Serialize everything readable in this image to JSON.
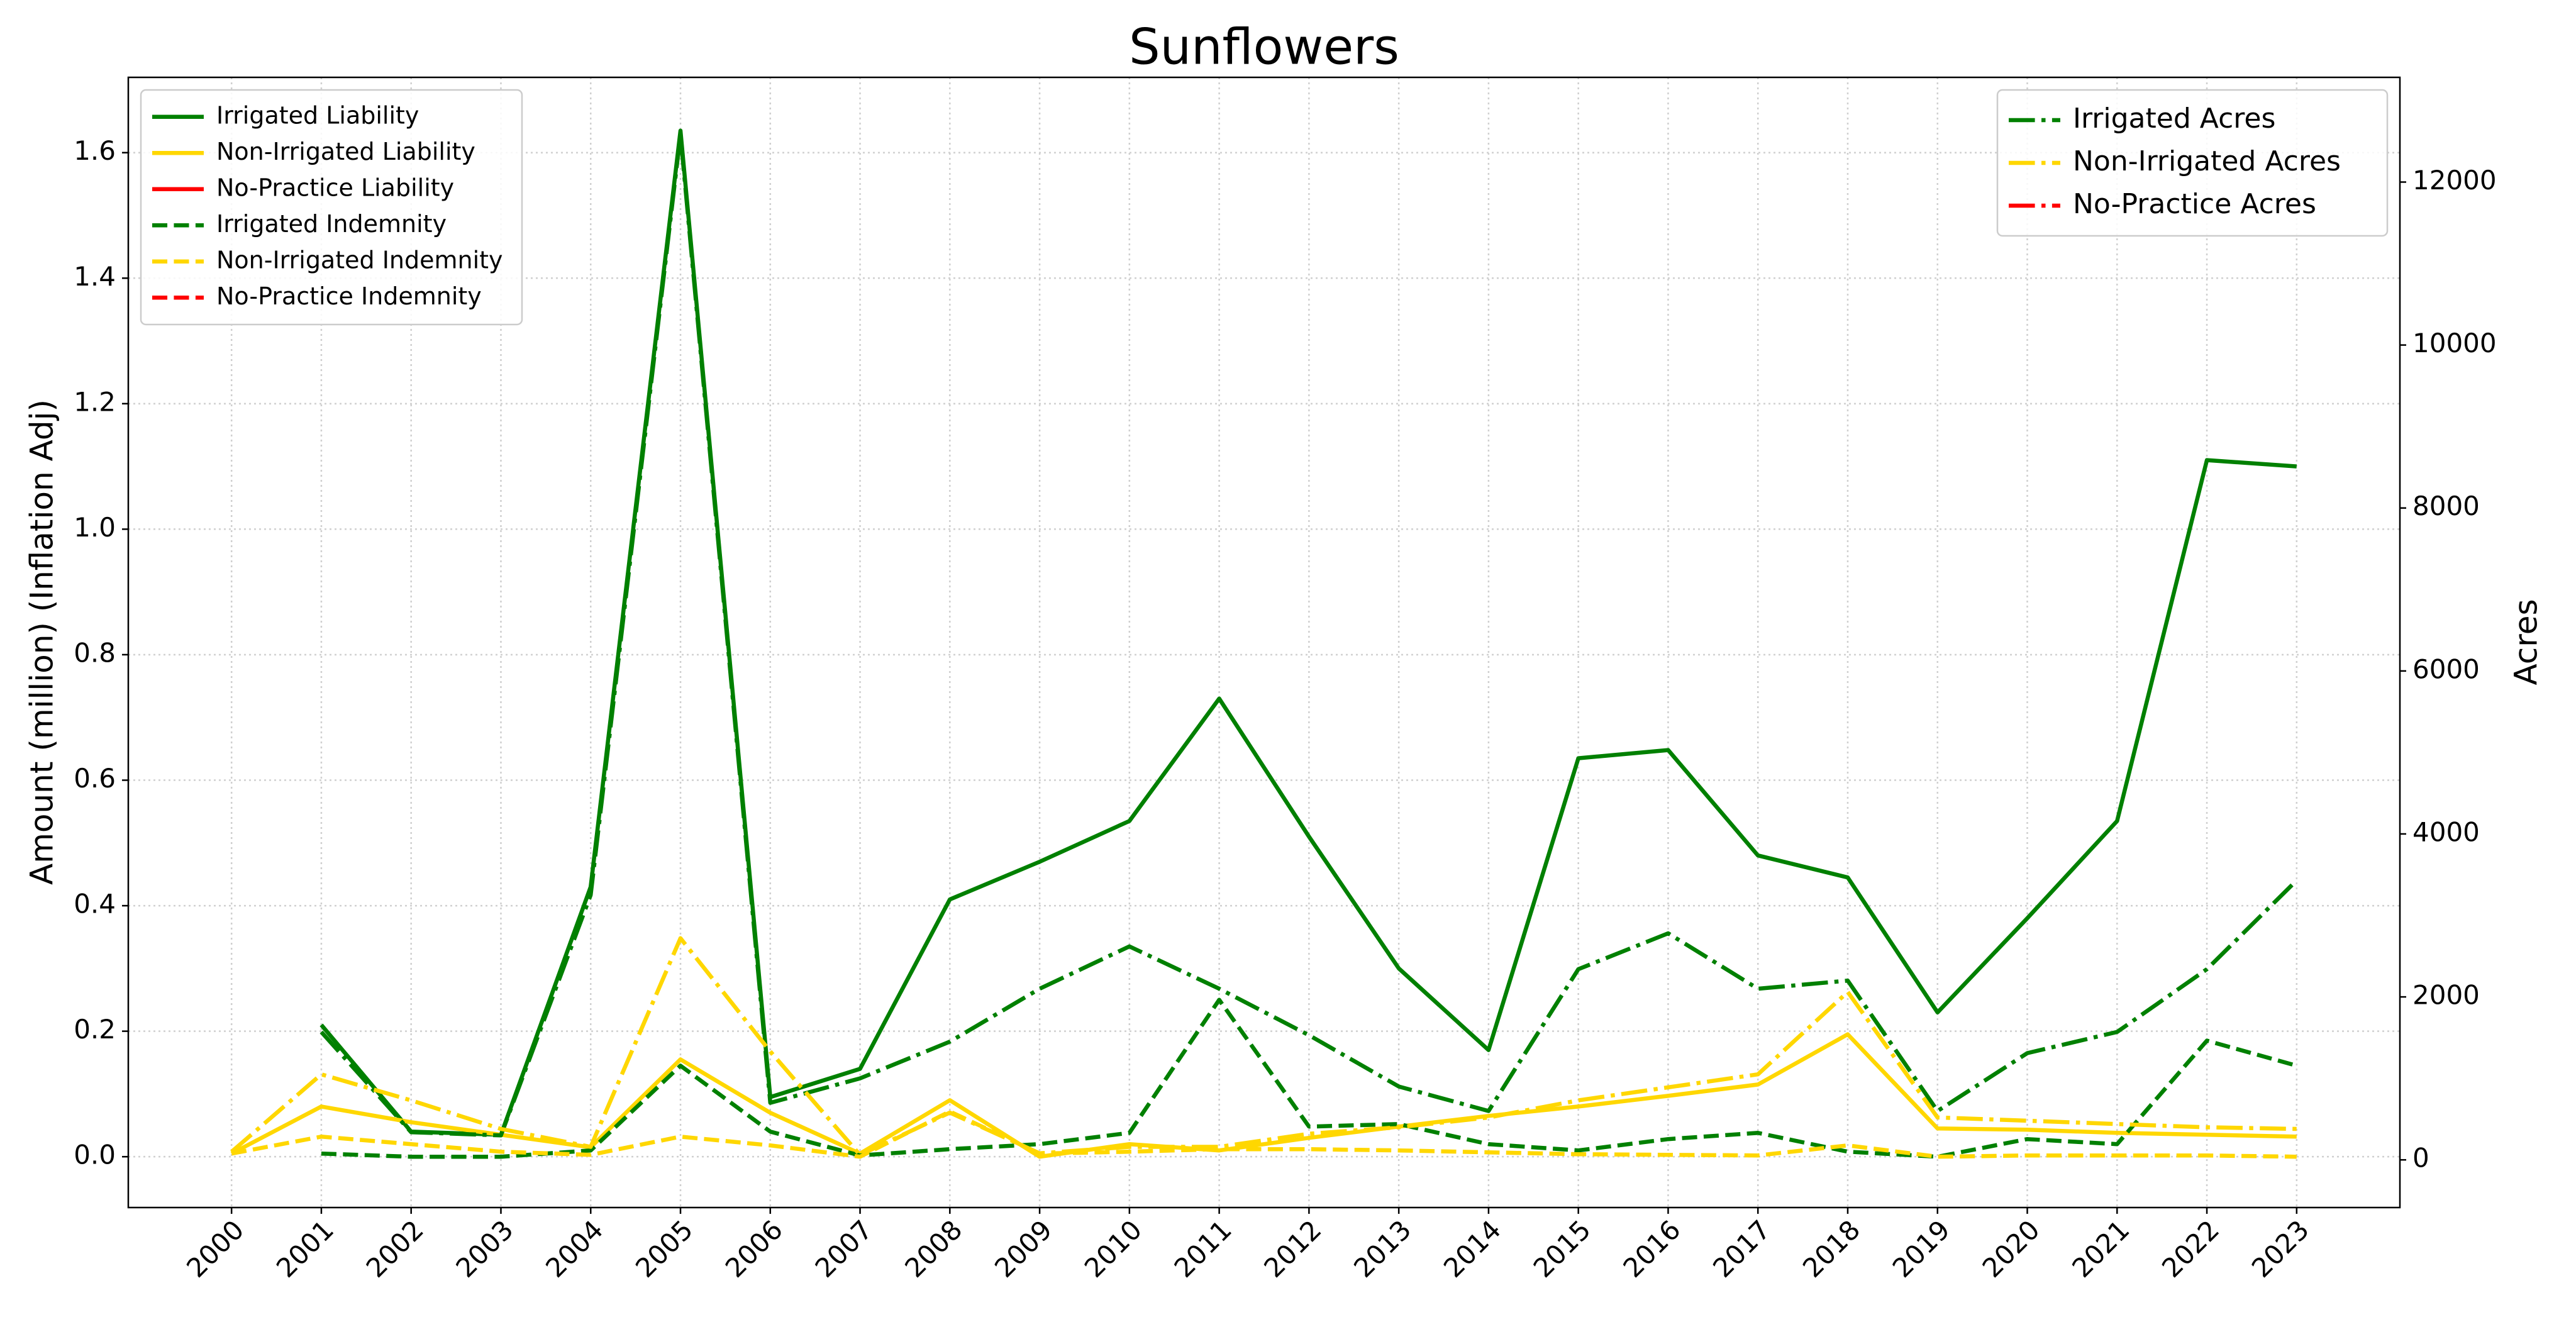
{
  "chart_data": {
    "type": "line",
    "title": "Sunflowers",
    "ylabel": "Amount (million) (Inflation Adj)",
    "y2label": "Acres",
    "categories": [
      "2000",
      "2001",
      "2002",
      "2003",
      "2004",
      "2005",
      "2006",
      "2007",
      "2008",
      "2009",
      "2010",
      "2011",
      "2012",
      "2013",
      "2014",
      "2015",
      "2016",
      "2017",
      "2018",
      "2019",
      "2020",
      "2021",
      "2022",
      "2023"
    ],
    "series": [
      {
        "name": "Irrigated Liability",
        "color": "#008000",
        "linestyle": "solid",
        "values": [
          null,
          0.21,
          0.04,
          0.035,
          0.43,
          1.635,
          0.095,
          0.14,
          0.41,
          0.47,
          0.535,
          0.73,
          0.51,
          0.3,
          0.17,
          0.635,
          0.648,
          0.48,
          0.445,
          0.23,
          0.38,
          0.535,
          1.11,
          1.1
        ]
      },
      {
        "name": "Non-Irrigated Liability",
        "color": "#ffd700",
        "linestyle": "solid",
        "values": [
          0.005,
          0.08,
          0.055,
          0.035,
          0.015,
          0.155,
          0.07,
          0.005,
          0.09,
          0.0,
          0.02,
          0.01,
          0.03,
          0.048,
          0.065,
          0.08,
          0.097,
          0.115,
          0.195,
          0.045,
          0.043,
          0.038,
          0.035,
          0.032
        ]
      },
      {
        "name": "No-Practice Liability",
        "color": "#ff0000",
        "linestyle": "solid",
        "values": [
          null,
          null,
          null,
          null,
          null,
          null,
          null,
          null,
          null,
          null,
          null,
          null,
          null,
          null,
          null,
          null,
          null,
          null,
          null,
          null,
          null,
          null,
          null,
          null
        ]
      },
      {
        "name": "Irrigated Indemnity",
        "color": "#008000",
        "linestyle": "dashed",
        "values": [
          null,
          0.005,
          0.0,
          0.0,
          0.01,
          0.145,
          0.04,
          0.002,
          0.012,
          0.02,
          0.038,
          0.25,
          0.048,
          0.052,
          0.02,
          0.01,
          0.028,
          0.038,
          0.008,
          0.0,
          0.028,
          0.02,
          0.185,
          0.145
        ]
      },
      {
        "name": "Non-Irrigated Indemnity",
        "color": "#ffd700",
        "linestyle": "dashed",
        "values": [
          0.005,
          0.032,
          0.02,
          0.008,
          0.003,
          0.032,
          0.018,
          0.0,
          0.072,
          0.005,
          0.008,
          0.012,
          0.012,
          0.01,
          0.007,
          0.004,
          0.003,
          0.002,
          0.018,
          0.0,
          0.002,
          0.002,
          0.002,
          0.0
        ]
      },
      {
        "name": "No-Practice Indemnity",
        "color": "#ff0000",
        "linestyle": "dashed",
        "values": [
          null,
          null,
          null,
          null,
          null,
          null,
          null,
          null,
          null,
          null,
          null,
          null,
          null,
          null,
          null,
          null,
          null,
          null,
          null,
          null,
          null,
          null,
          null,
          null
        ]
      },
      {
        "name": "Irrigated Acres",
        "color": "#008000",
        "linestyle": "dashdot",
        "axis": "y2",
        "values": [
          null,
          1570,
          340,
          300,
          3250,
          12580,
          700,
          1000,
          1450,
          2100,
          2620,
          2100,
          1530,
          900,
          600,
          2340,
          2780,
          2100,
          2200,
          600,
          1310,
          1570,
          2340,
          3430
        ]
      },
      {
        "name": "Non-Irrigated Acres",
        "color": "#ffd700",
        "linestyle": "dashdot",
        "axis": "y2",
        "values": [
          100,
          1050,
          730,
          380,
          160,
          2720,
          1330,
          60,
          580,
          80,
          160,
          160,
          320,
          400,
          520,
          730,
          890,
          1050,
          2060,
          520,
          480,
          440,
          400,
          380
        ]
      },
      {
        "name": "No-Practice Acres",
        "color": "#ff0000",
        "linestyle": "dashdot",
        "axis": "y2",
        "values": [
          null,
          null,
          null,
          null,
          null,
          null,
          null,
          null,
          null,
          null,
          null,
          null,
          null,
          null,
          null,
          null,
          null,
          null,
          null,
          null,
          null,
          null,
          null,
          null
        ]
      }
    ],
    "ylim": [
      -0.081,
      1.72
    ],
    "yticks": [
      {
        "value": 0,
        "label": "0.0"
      },
      0.2,
      0.4,
      0.6,
      0.8,
      {
        "value": 1,
        "label": "1.0"
      },
      1.2,
      1.4,
      1.6
    ],
    "y2lim": [
      -585,
      13285
    ],
    "y2ticks": [
      0,
      2000,
      4000,
      6000,
      8000,
      10000,
      12000
    ],
    "grid": true,
    "legend_loc": "upper left",
    "y2_legend_loc": "upper right"
  }
}
